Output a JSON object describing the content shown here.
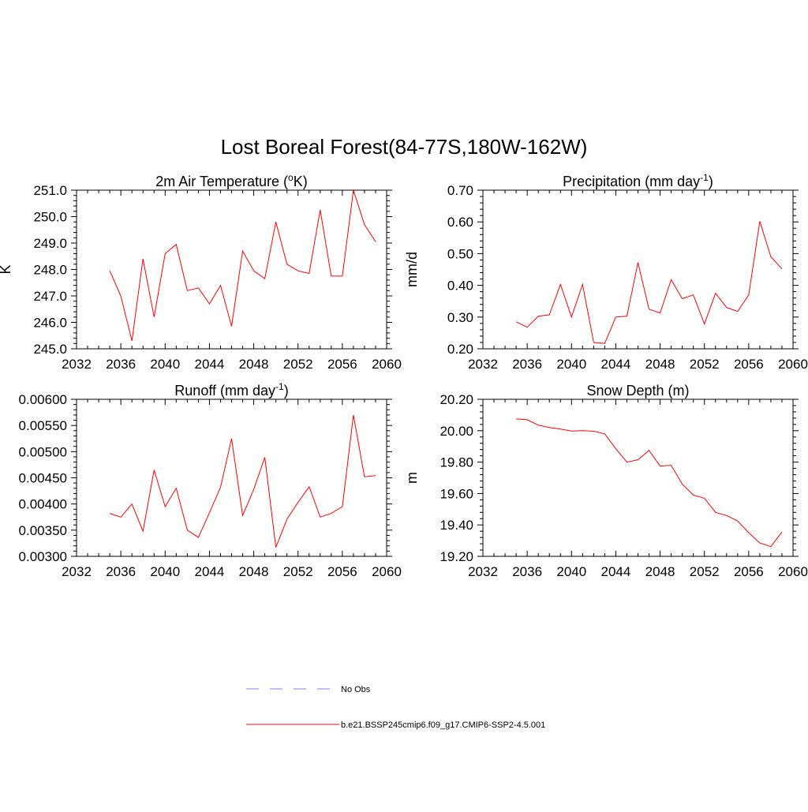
{
  "title": "Lost Boreal Forest(84-77S,180W-162W)",
  "colors": {
    "model_line": "#ff0000",
    "obs_line": "#9999ff",
    "axis": "#000000"
  },
  "legend": {
    "obs_label": "No Obs",
    "model_label": "b.e21.BSSP245cmip6.f09_g17.CMIP6-SSP2-4.5.001"
  },
  "chart_data": [
    {
      "type": "line",
      "title": "2m Air Temperature (°K)",
      "title_main": "2m Air Temperature (",
      "title_sup": "o",
      "title_rest": "K)",
      "xlabel": "",
      "ylabel": "K",
      "xlim": [
        2032,
        2060
      ],
      "ylim": [
        245.0,
        251.0
      ],
      "x_ticks": [
        "2032",
        "2036",
        "2040",
        "2044",
        "2048",
        "2052",
        "2056",
        "2060"
      ],
      "y_ticks": [
        "245.0",
        "246.0",
        "247.0",
        "248.0",
        "249.0",
        "250.0",
        "251.0"
      ],
      "x": [
        2035,
        2036,
        2037,
        2038,
        2039,
        2040,
        2041,
        2042,
        2043,
        2044,
        2045,
        2046,
        2047,
        2048,
        2049,
        2050,
        2051,
        2052,
        2053,
        2054,
        2055,
        2056,
        2057,
        2058,
        2059
      ],
      "series": [
        {
          "values": [
            247.95,
            247.0,
            245.3,
            248.4,
            246.2,
            248.6,
            248.95,
            247.2,
            247.3,
            246.7,
            247.4,
            245.85,
            248.7,
            247.95,
            247.65,
            249.8,
            248.2,
            247.95,
            247.85,
            250.25,
            247.75,
            247.75,
            251.0,
            249.7,
            249.05
          ]
        }
      ]
    },
    {
      "type": "line",
      "title": "Precipitation (mm day-1)",
      "title_main": "Precipitation (mm day",
      "title_sup": "-1",
      "title_rest": ")",
      "xlabel": "",
      "ylabel": "mm/d",
      "xlim": [
        2032,
        2060
      ],
      "ylim": [
        0.2,
        0.7
      ],
      "x_ticks": [
        "2032",
        "2036",
        "2040",
        "2044",
        "2048",
        "2052",
        "2056",
        "2060"
      ],
      "y_ticks": [
        "0.20",
        "0.30",
        "0.40",
        "0.50",
        "0.60",
        "0.70"
      ],
      "x": [
        2035,
        2036,
        2037,
        2038,
        2039,
        2040,
        2041,
        2042,
        2043,
        2044,
        2045,
        2046,
        2047,
        2048,
        2049,
        2050,
        2051,
        2052,
        2053,
        2054,
        2055,
        2056,
        2057,
        2058,
        2059
      ],
      "series": [
        {
          "values": [
            0.285,
            0.268,
            0.303,
            0.307,
            0.403,
            0.3,
            0.403,
            0.22,
            0.217,
            0.3,
            0.303,
            0.472,
            0.325,
            0.313,
            0.418,
            0.358,
            0.37,
            0.278,
            0.375,
            0.33,
            0.318,
            0.37,
            0.602,
            0.49,
            0.452
          ]
        }
      ]
    },
    {
      "type": "line",
      "title": "Runoff (mm day-1)",
      "title_main": "Runoff (mm day",
      "title_sup": "-1",
      "title_rest": ")",
      "xlabel": "",
      "ylabel": "",
      "xlim": [
        2032,
        2060
      ],
      "ylim": [
        0.003,
        0.006
      ],
      "x_ticks": [
        "2032",
        "2036",
        "2040",
        "2044",
        "2048",
        "2052",
        "2056",
        "2060"
      ],
      "y_ticks": [
        "0.00300",
        "0.00350",
        "0.00400",
        "0.00450",
        "0.00500",
        "0.00550",
        "0.00600"
      ],
      "x": [
        2035,
        2036,
        2037,
        2038,
        2039,
        2040,
        2041,
        2042,
        2043,
        2044,
        2045,
        2046,
        2047,
        2048,
        2049,
        2050,
        2051,
        2052,
        2053,
        2054,
        2055,
        2056,
        2057,
        2058,
        2059
      ],
      "series": [
        {
          "values": [
            0.00382,
            0.00375,
            0.004,
            0.00348,
            0.00465,
            0.00395,
            0.0043,
            0.0035,
            0.00336,
            0.00383,
            0.00432,
            0.00525,
            0.00378,
            0.00428,
            0.00489,
            0.00317,
            0.00371,
            0.00403,
            0.00433,
            0.00375,
            0.00382,
            0.00395,
            0.0057,
            0.00452,
            0.00454
          ]
        }
      ]
    },
    {
      "type": "line",
      "title": "Snow Depth (m)",
      "title_main": "Snow Depth (m)",
      "title_sup": "",
      "title_rest": "",
      "xlabel": "",
      "ylabel": "m",
      "xlim": [
        2032,
        2060
      ],
      "ylim": [
        19.2,
        20.2
      ],
      "x_ticks": [
        "2032",
        "2036",
        "2040",
        "2044",
        "2048",
        "2052",
        "2056",
        "2060"
      ],
      "y_ticks": [
        "19.20",
        "19.40",
        "19.60",
        "19.80",
        "20.00",
        "20.20"
      ],
      "x": [
        2035,
        2036,
        2037,
        2038,
        2039,
        2040,
        2041,
        2042,
        2043,
        2044,
        2045,
        2046,
        2047,
        2048,
        2049,
        2050,
        2051,
        2052,
        2053,
        2054,
        2055,
        2056,
        2057,
        2058,
        2059
      ],
      "series": [
        {
          "values": [
            20.075,
            20.07,
            20.035,
            20.02,
            20.01,
            19.998,
            20.0,
            19.997,
            19.98,
            19.885,
            19.8,
            19.815,
            19.875,
            19.775,
            19.78,
            19.66,
            19.59,
            19.57,
            19.48,
            19.46,
            19.425,
            19.35,
            19.285,
            19.262,
            19.355
          ]
        }
      ]
    }
  ]
}
